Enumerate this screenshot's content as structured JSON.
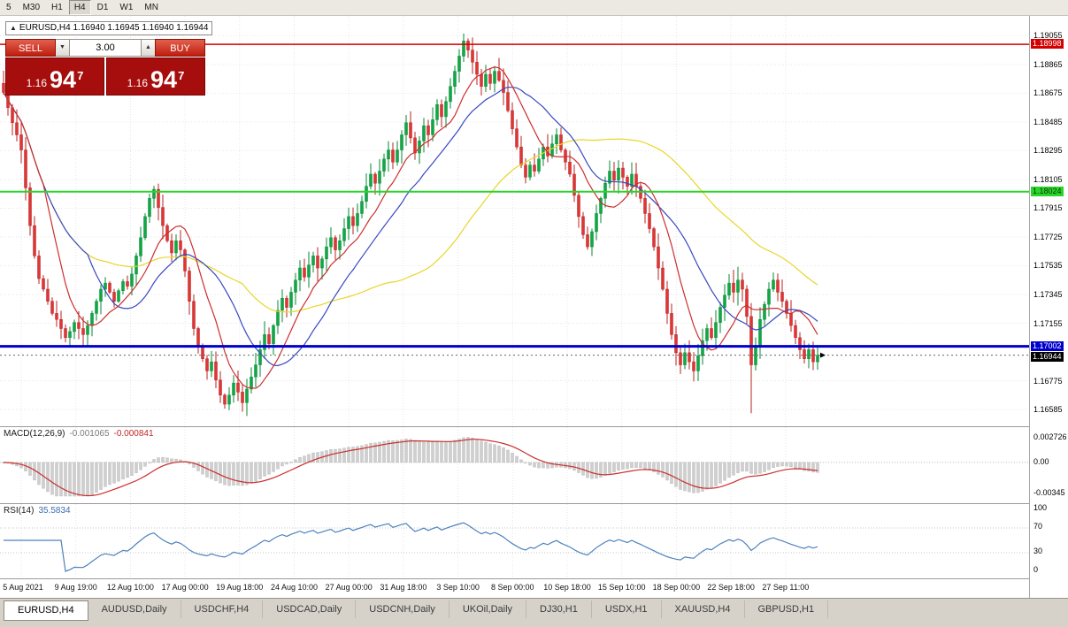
{
  "icons": {
    "collapse": "▲",
    "spin_up": "▲",
    "spin_down": "▼"
  },
  "toolbar": {
    "periods": [
      {
        "label": "5",
        "active": false
      },
      {
        "label": "M30",
        "active": false
      },
      {
        "label": "H1",
        "active": false
      },
      {
        "label": "H4",
        "active": true
      },
      {
        "label": "D1",
        "active": false
      },
      {
        "label": "W1",
        "active": false
      },
      {
        "label": "MN",
        "active": false
      }
    ]
  },
  "chart": {
    "title": "EURUSD,H4 1.16940 1.16945 1.16940 1.16944",
    "trade_panel": {
      "sell_label": "SELL",
      "buy_label": "BUY",
      "volume": "3.00",
      "sell_price": {
        "prefix": "1.16",
        "big": "94",
        "sup": "7"
      },
      "buy_price": {
        "prefix": "1.16",
        "big": "94",
        "sup": "7"
      }
    }
  },
  "chart_data": {
    "type": "candlestick",
    "symbol": "EURUSD",
    "timeframe": "H4",
    "quote": {
      "o": "1.16940",
      "h": "1.16945",
      "l": "1.16940",
      "c": "1.16944"
    },
    "closes": [
      1.1868,
      1.1858,
      1.1848,
      1.184,
      1.183,
      1.1805,
      1.178,
      1.176,
      1.1745,
      1.1738,
      1.173,
      1.1722,
      1.1718,
      1.1712,
      1.1706,
      1.171,
      1.1716,
      1.1712,
      1.1708,
      1.1714,
      1.1722,
      1.173,
      1.1738,
      1.1742,
      1.1736,
      1.173,
      1.1737,
      1.1743,
      1.174,
      1.1748,
      1.176,
      1.1772,
      1.1786,
      1.1798,
      1.1804,
      1.1792,
      1.178,
      1.177,
      1.1762,
      1.177,
      1.1764,
      1.175,
      1.173,
      1.1712,
      1.17,
      1.1692,
      1.1684,
      1.169,
      1.1678,
      1.1668,
      1.1662,
      1.1668,
      1.1676,
      1.167,
      1.1663,
      1.1672,
      1.168,
      1.1688,
      1.1698,
      1.1708,
      1.1702,
      1.1714,
      1.1724,
      1.1732,
      1.1726,
      1.1736,
      1.1744,
      1.1752,
      1.1746,
      1.1754,
      1.176,
      1.1752,
      1.1758,
      1.1766,
      1.1772,
      1.1764,
      1.177,
      1.1778,
      1.1786,
      1.178,
      1.1788,
      1.1796,
      1.1806,
      1.1814,
      1.1808,
      1.1816,
      1.1824,
      1.183,
      1.1822,
      1.183,
      1.184,
      1.1848,
      1.1838,
      1.1828,
      1.1836,
      1.1846,
      1.184,
      1.185,
      1.186,
      1.1852,
      1.1862,
      1.1872,
      1.1882,
      1.1892,
      1.1902,
      1.1896,
      1.1888,
      1.188,
      1.1872,
      1.188,
      1.1874,
      1.1882,
      1.1876,
      1.1868,
      1.1856,
      1.1844,
      1.1832,
      1.182,
      1.1812,
      1.182,
      1.1816,
      1.1824,
      1.1832,
      1.1826,
      1.1834,
      1.184,
      1.183,
      1.1822,
      1.1814,
      1.18,
      1.1786,
      1.1774,
      1.1766,
      1.1776,
      1.1788,
      1.1798,
      1.1808,
      1.1816,
      1.181,
      1.1818,
      1.1812,
      1.1806,
      1.1814,
      1.1806,
      1.1798,
      1.1788,
      1.1778,
      1.1766,
      1.1752,
      1.1738,
      1.1722,
      1.1708,
      1.1696,
      1.1688,
      1.1696,
      1.169,
      1.1684,
      1.1694,
      1.1704,
      1.1712,
      1.1706,
      1.1716,
      1.1726,
      1.1734,
      1.1742,
      1.1736,
      1.1744,
      1.1738,
      1.172,
      1.1688,
      1.17,
      1.1718,
      1.1728,
      1.1738,
      1.1744,
      1.1736,
      1.173,
      1.1722,
      1.1714,
      1.1706,
      1.1698,
      1.1692,
      1.1698,
      1.169,
      1.16944
    ],
    "overrides": {
      "high": {
        "104": 1.1907
      },
      "low": {
        "50": 1.1659,
        "54": 1.1657,
        "169": 1.1656
      }
    },
    "moving_averages": [
      {
        "name": "ma-fast",
        "period": 10,
        "color": "#cc2e2e"
      },
      {
        "name": "ma-mid",
        "period": 20,
        "color": "#3848c0"
      },
      {
        "name": "ma-slow",
        "period": 55,
        "color": "#e8d62a"
      }
    ],
    "levels": [
      {
        "label": "1.18998",
        "price": 1.18998,
        "color": "#d40000",
        "badge_fg": "#ffffff",
        "width": 1.5,
        "style": "solid"
      },
      {
        "label": "1.18024",
        "price": 1.18024,
        "color": "#2bd42b",
        "badge_fg": "#063b06",
        "width": 2,
        "style": "solid"
      },
      {
        "label": "1.17002",
        "price": 1.17002,
        "color": "#0000cc",
        "badge_fg": "#ffffff",
        "width": 3,
        "style": "solid"
      },
      {
        "label": "1.16944",
        "price": 1.16944,
        "color": "#000000",
        "badge_fg": "#ffffff",
        "width": 1,
        "style": "dotted",
        "line_color": "#666666"
      }
    ],
    "y_axis": [
      "1.19055",
      "1.18865",
      "1.18675",
      "1.18485",
      "1.18295",
      "1.18105",
      "1.17915",
      "1.17725",
      "1.17535",
      "1.17345",
      "1.17155",
      "1.16775",
      "1.16585"
    ],
    "x_axis": [
      "5 Aug 2021",
      "9 Aug 19:00",
      "12 Aug 10:00",
      "17 Aug 00:00",
      "19 Aug 18:00",
      "24 Aug 10:00",
      "27 Aug 00:00",
      "31 Aug 18:00",
      "3 Sep 10:00",
      "8 Sep 00:00",
      "10 Sep 18:00",
      "15 Sep 10:00",
      "18 Sep 00:00",
      "22 Sep 18:00",
      "27 Sep 11:00"
    ],
    "macd": {
      "label": "MACD(12,26,9)",
      "main_value": "-0.001065",
      "signal_value": "-0.000841",
      "fast": 12,
      "slow": 26,
      "signal": 9,
      "axis": [
        "0.002726",
        "0.00",
        "-0.00345"
      ],
      "range": {
        "max": 0.0031,
        "min": -0.0037
      },
      "colors": {
        "histogram": "#cfcfcf",
        "signal": "#cc2e2e"
      }
    },
    "rsi": {
      "label": "RSI(14)",
      "value": "35.5834",
      "period": 14,
      "axis": [
        "100",
        "70",
        "30",
        "0"
      ],
      "levels": [
        70,
        30
      ],
      "color": "#4d82bd"
    },
    "candle_colors": {
      "up": "#0ea944",
      "up_line": "#068a33",
      "down": "#e03535",
      "down_line": "#b82222"
    }
  },
  "tabs": [
    {
      "label": "EURUSD,H4",
      "active": true
    },
    {
      "label": "AUDUSD,Daily",
      "active": false
    },
    {
      "label": "USDCHF,H4",
      "active": false
    },
    {
      "label": "USDCAD,Daily",
      "active": false
    },
    {
      "label": "USDCNH,Daily",
      "active": false
    },
    {
      "label": "UKOil,Daily",
      "active": false
    },
    {
      "label": "DJ30,H1",
      "active": false
    },
    {
      "label": "USDX,H1",
      "active": false
    },
    {
      "label": "XAUUSD,H4",
      "active": false
    },
    {
      "label": "GBPUSD,H1",
      "active": false
    }
  ]
}
